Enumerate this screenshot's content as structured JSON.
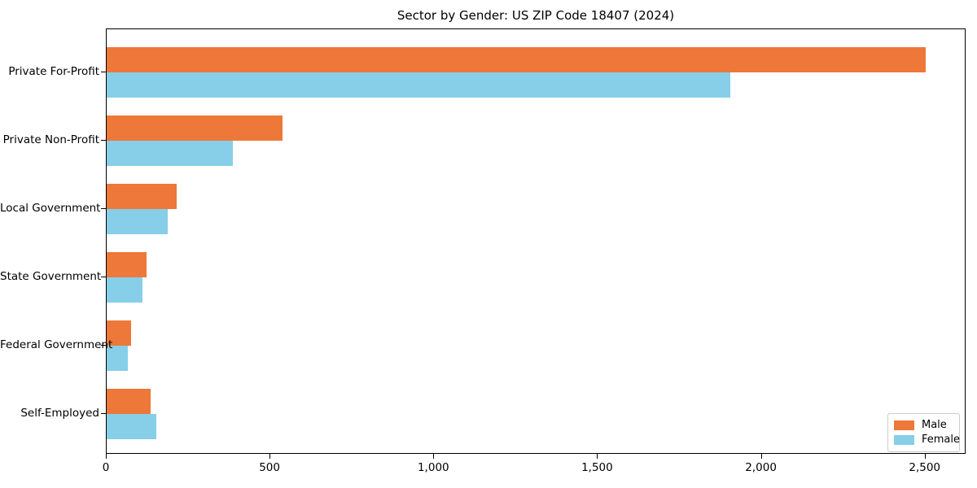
{
  "chart_data": {
    "type": "bar",
    "orientation": "horizontal",
    "title": "Sector by Gender: US ZIP Code 18407 (2024)",
    "categories": [
      "Private For-Profit",
      "Private Non-Profit",
      "Local Government",
      "State Government",
      "Federal Government",
      "Self-Employed"
    ],
    "series": [
      {
        "name": "Male",
        "color": "#ed7839",
        "values": [
          2500,
          536,
          214,
          121,
          75,
          133
        ]
      },
      {
        "name": "Female",
        "color": "#87cee9",
        "values": [
          1905,
          386,
          186,
          109,
          64,
          151
        ]
      }
    ],
    "xlabel": "",
    "ylabel": "",
    "xlim": [
      0,
      2625
    ],
    "xticks": [
      0,
      500,
      1000,
      1500,
      2000,
      2500
    ],
    "xtick_labels": [
      "0",
      "500",
      "1,000",
      "1,500",
      "2,000",
      "2,500"
    ],
    "grid": false,
    "legend": {
      "position": "lower right"
    },
    "colors": {
      "spine": "#000000",
      "background": "#ffffff",
      "legend_border": "#cccccc"
    }
  }
}
